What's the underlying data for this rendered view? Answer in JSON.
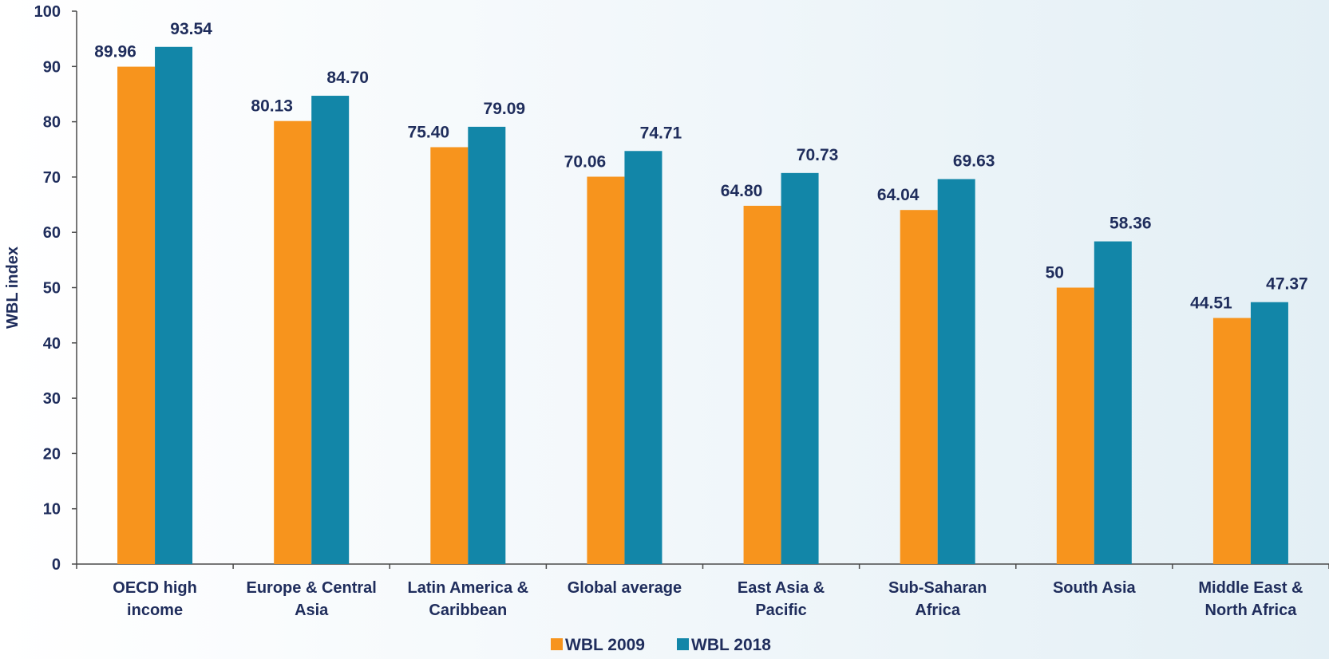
{
  "chart_data": {
    "type": "bar",
    "ylabel": "WBL index",
    "ylim": [
      0,
      100
    ],
    "yticks": [
      0,
      10,
      20,
      30,
      40,
      50,
      60,
      70,
      80,
      90,
      100
    ],
    "categories": [
      [
        "OECD high",
        "income"
      ],
      [
        "Europe & Central",
        "Asia"
      ],
      [
        "Latin America &",
        "Caribbean"
      ],
      [
        "Global average"
      ],
      [
        "East Asia &",
        "Pacific"
      ],
      [
        "Sub-Saharan",
        "Africa"
      ],
      [
        "South Asia"
      ],
      [
        "Middle East &",
        "North Africa"
      ]
    ],
    "series": [
      {
        "name": "WBL 2009",
        "color": "#f7941d",
        "values": [
          89.96,
          80.13,
          75.4,
          70.06,
          64.8,
          64.04,
          50,
          44.51
        ],
        "labels": [
          "89.96",
          "80.13",
          "75.40",
          "70.06",
          "64.80",
          "64.04",
          "50",
          "44.51"
        ]
      },
      {
        "name": "WBL 2018",
        "color": "#1286a8",
        "values": [
          93.54,
          84.7,
          79.09,
          74.71,
          70.73,
          69.63,
          58.36,
          47.37
        ],
        "labels": [
          "93.54",
          "84.70",
          "79.09",
          "74.71",
          "70.73",
          "69.63",
          "58.36",
          "47.37"
        ]
      }
    ],
    "legend": "bottom-center",
    "grid": false,
    "text_color": "#1f2d5c"
  }
}
